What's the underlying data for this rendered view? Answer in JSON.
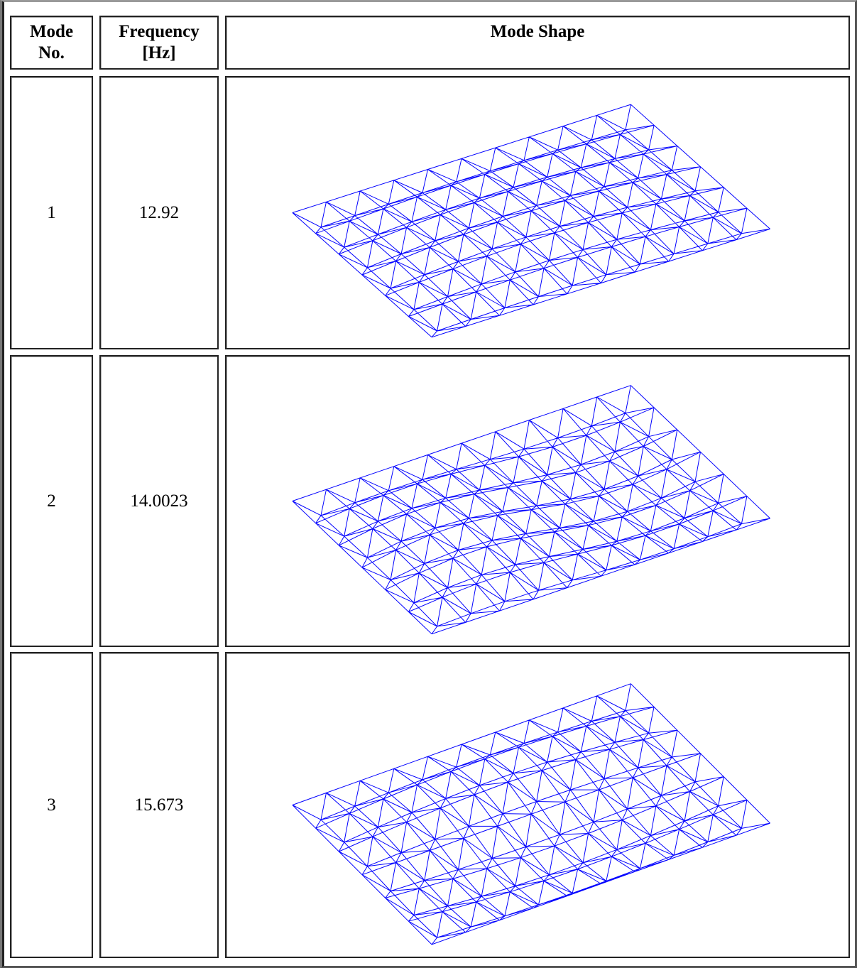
{
  "table": {
    "headers": [
      "Mode No.",
      "Frequency [Hz]",
      "Mode Shape"
    ],
    "rows": [
      [
        "1",
        "12.92"
      ],
      [
        "2",
        "14.0023"
      ],
      [
        "3",
        "15.673"
      ]
    ]
  }
}
